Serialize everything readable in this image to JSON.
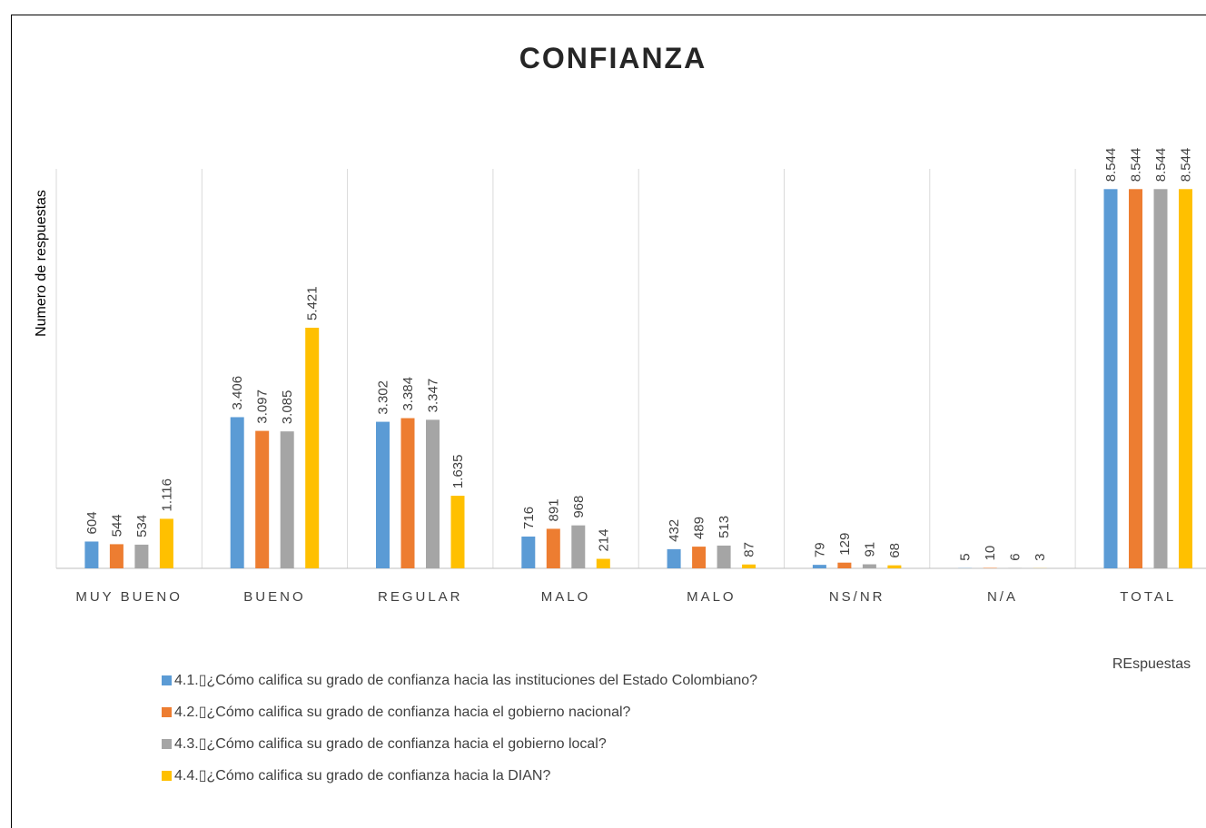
{
  "chart_data": {
    "type": "bar",
    "title": "CONFIANZA",
    "y_label": "Numero de respuestas",
    "x_label": "REspuestas",
    "categories": [
      "MUY BUENO",
      "BUENO",
      "REGULAR",
      "MALO",
      "MALO",
      "NS/NR",
      "N/A",
      "TOTAL"
    ],
    "ylim": [
      0,
      9000
    ],
    "series": [
      {
        "name": "4.1.▯¿Cómo califica su grado de confianza hacia las instituciones del Estado Colombiano?",
        "color": "#5b9bd5",
        "values": [
          604,
          3406,
          3302,
          716,
          432,
          79,
          5,
          8544
        ],
        "value_labels": [
          "604",
          "3.406",
          "3.302",
          "716",
          "432",
          "79",
          "5",
          "8.544"
        ]
      },
      {
        "name": "4.2.▯¿Cómo califica su grado de confianza hacia el gobierno nacional?",
        "color": "#ed7d31",
        "values": [
          544,
          3097,
          3384,
          891,
          489,
          129,
          10,
          8544
        ],
        "value_labels": [
          "544",
          "3.097",
          "3.384",
          "891",
          "489",
          "129",
          "10",
          "8.544"
        ]
      },
      {
        "name": "4.3.▯¿Cómo califica su grado de confianza hacia el gobierno local?",
        "color": "#a5a5a5",
        "values": [
          534,
          3085,
          3347,
          968,
          513,
          91,
          6,
          8544
        ],
        "value_labels": [
          "534",
          "3.085",
          "3.347",
          "968",
          "513",
          "91",
          "6",
          "8.544"
        ]
      },
      {
        "name": "4.4.▯¿Cómo califica su grado de confianza hacia la DIAN?",
        "color": "#ffc000",
        "values": [
          1116,
          5421,
          1635,
          214,
          87,
          68,
          3,
          8544
        ],
        "value_labels": [
          "1.116",
          "5.421",
          "1.635",
          "214",
          "87",
          "68",
          "3",
          "8.544"
        ]
      }
    ]
  }
}
